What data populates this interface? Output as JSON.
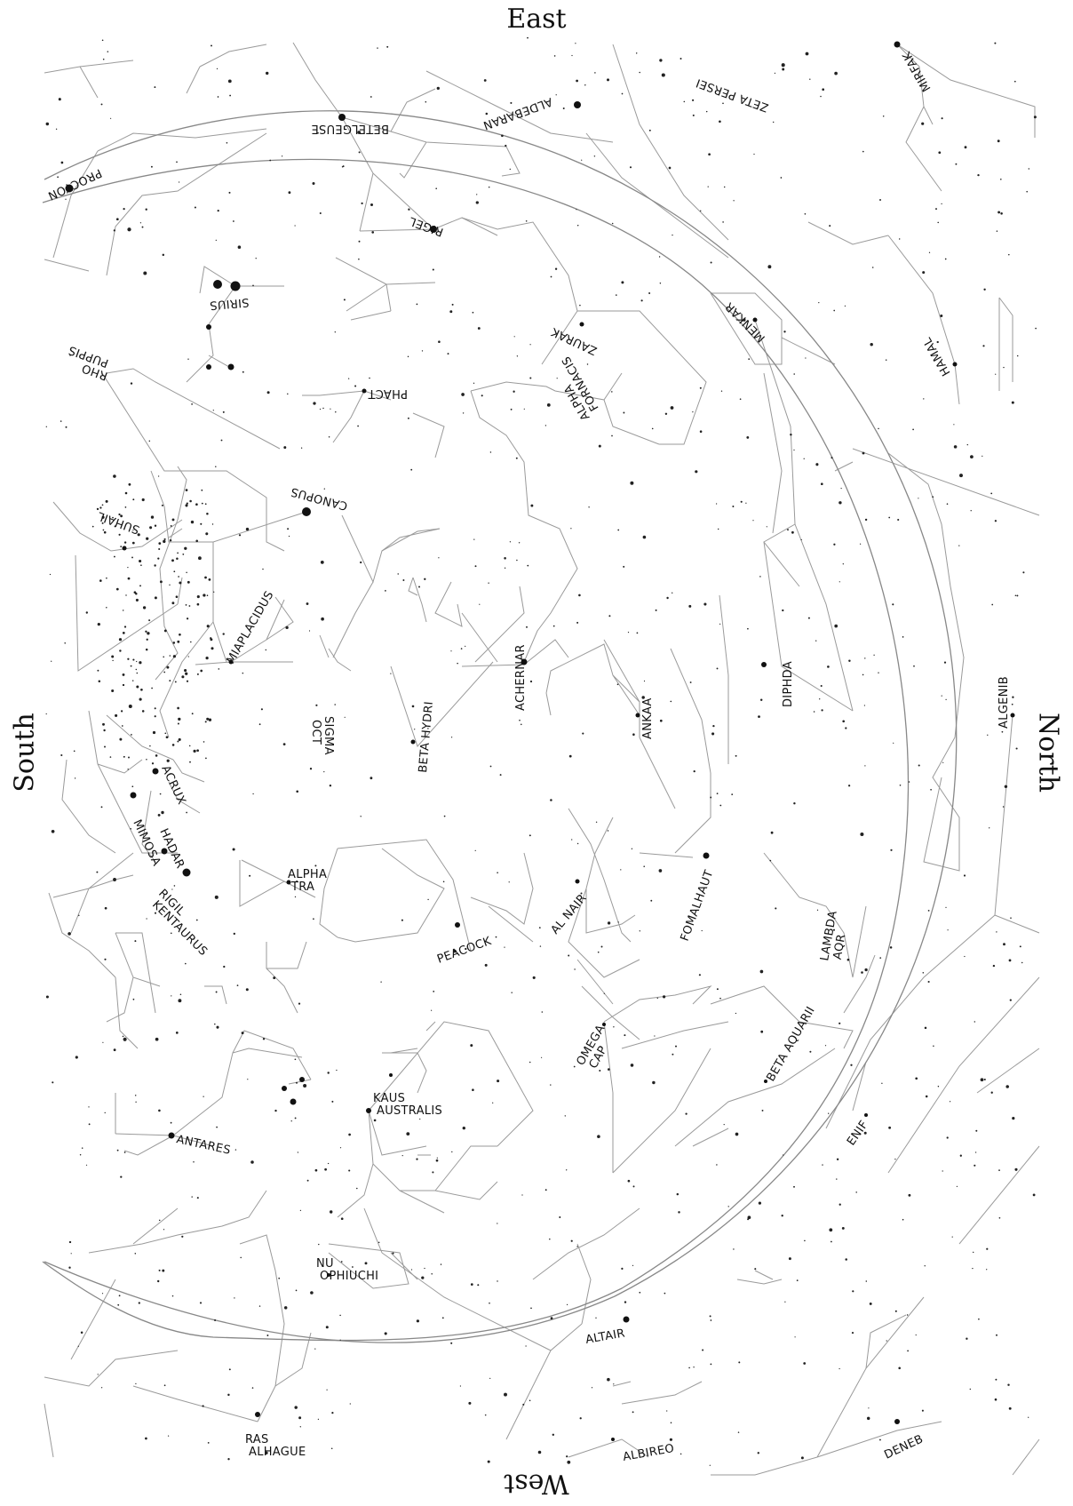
{
  "directions": {
    "top": "East",
    "bottom": "West",
    "left": "South",
    "right": "North"
  },
  "colors": {
    "background": "#ffffff",
    "lines": "#9a9a9a",
    "stars": "#111111",
    "horizon": "#888888"
  },
  "star_labels": [
    "ALDEBARAN",
    "ZETA PERSEI",
    "MIRFAK",
    "BETELGEUSE",
    "PROCYON",
    "RIGEL",
    "SIRIUS",
    "MENKAR",
    "ZAURAK",
    "HAMAL",
    "RHO PUPPIS",
    "PHACT",
    "ALPHA FORNACIS",
    "CANOPUS",
    "SUHAIL",
    "MIAPLACIDUS",
    "DIPHDA",
    "ACHERNAR",
    "ALGENIB",
    "SIGMA OCT",
    "BETA HYDRI",
    "ANKAA",
    "ACRUX",
    "MIMOSA",
    "HADAR",
    "RIGIL KENTAURUS",
    "ALPHA TRA",
    "AL NAIR",
    "FOMALHAUT",
    "LAMBDA AQR",
    "PEACOCK",
    "OMEGA CAP",
    "BETA AQUARII",
    "KAUS AUSTRALIS",
    "ENIF",
    "ANTARES",
    "NU OPHIUCHI",
    "ALTAIR",
    "RAS ALHAGUE",
    "ALBIREO",
    "DENEB"
  ]
}
